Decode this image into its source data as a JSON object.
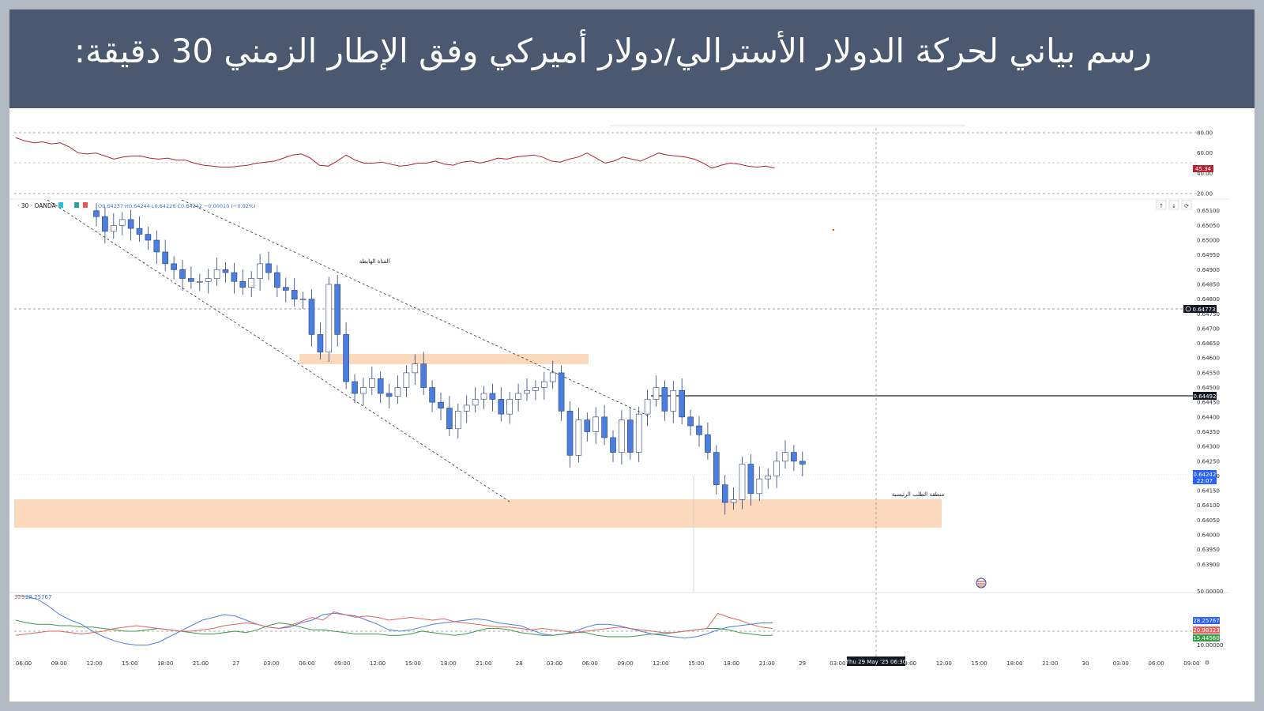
{
  "banner": {
    "title": "رسم بياني لحركة الدولار الأسترالي/دولار أميركي وفق الإطار الزمني 30 دقيقة:"
  },
  "legend": {
    "symbol": "· 30 · OANDA",
    "ohlc": "O0.64237 H0.64244 L0.64226 C0.64242 −0.00010 (−0.02%)"
  },
  "annotations": {
    "channel_label": "القناة الهابطة",
    "demand_label": "منطقة الطلب الرئيسية"
  },
  "badges": {
    "rsi_value": "45.34",
    "line_price": "0.64773",
    "resistance_price": "0.64492",
    "last_price": "0.64242",
    "countdown": "22:07",
    "adx_1": "28.25767",
    "adx_2": "20.98323",
    "adx_3": "15.44560",
    "crosshair_date": "Thu 29 May '25   06:30"
  },
  "indicator_labels": {
    "adx_legend_prefix": "323",
    "adx_legend_value": "28.25767"
  },
  "colors": {
    "banner_bg": "#4a5870",
    "candle_fill": "#4a7fe0",
    "zone_fill": "#fad9bd",
    "rsi_line": "#b22234",
    "adx_line": "#4a7fe0",
    "di_plus": "#3a9a4a",
    "di_minus": "#e0635f"
  },
  "icons": [
    "up-arrow-icon",
    "down-arrow-icon",
    "refresh-icon",
    "target-icon",
    "us-flag-icon",
    "settings-icon"
  ],
  "chart_data": [
    {
      "type": "line",
      "name": "RSI",
      "ylim": [
        20,
        80
      ],
      "y_ticks": [
        "80.00",
        "60.00",
        "40.00",
        "20.00"
      ],
      "values": [
        75,
        72,
        70,
        71,
        69,
        70,
        66,
        60,
        59,
        60,
        57,
        54,
        56,
        57,
        57,
        55,
        54,
        55,
        53,
        53,
        50,
        48,
        47,
        46,
        46,
        47,
        48,
        50,
        51,
        52,
        55,
        58,
        59,
        55,
        48,
        47,
        52,
        58,
        53,
        50,
        50,
        51,
        49,
        47,
        48,
        50,
        50,
        52,
        49,
        48,
        51,
        52,
        50,
        52,
        55,
        54,
        56,
        57,
        58,
        56,
        52,
        51,
        54,
        56,
        60,
        55,
        50,
        52,
        56,
        54,
        52,
        56,
        60,
        58,
        57,
        56,
        54,
        50,
        45,
        48,
        50,
        49,
        47,
        46,
        47,
        45
      ]
    },
    {
      "type": "candlestick",
      "name": "AUDUSD 30m",
      "ylim": [
        0.6385,
        0.6511
      ],
      "y_ticks": [
        "0.65100",
        "0.65050",
        "0.65000",
        "0.64950",
        "0.64900",
        "0.64850",
        "0.64800",
        "0.64750",
        "0.64700",
        "0.64650",
        "0.64600",
        "0.64550",
        "0.64500",
        "0.64450",
        "0.64400",
        "0.64350",
        "0.64300",
        "0.64250",
        "0.64200",
        "0.64150",
        "0.64100",
        "0.64050",
        "0.64000",
        "0.63950",
        "0.63900"
      ],
      "x_ticks": [
        "06:00",
        "09:00",
        "12:00",
        "15:00",
        "18:00",
        "21:00",
        "27",
        "03:00",
        "06:00",
        "09:00",
        "12:00",
        "15:00",
        "18:00",
        "21:00",
        "28",
        "03:00",
        "06:00",
        "09:00",
        "12:00",
        "15:00",
        "18:00",
        "21:00",
        "29",
        "03:00",
        "06:00",
        "09:00",
        "12:00",
        "15:00",
        "18:00",
        "21:00",
        "30",
        "03:00",
        "06:00",
        "09:00"
      ],
      "close": [
        0.6508,
        0.6503,
        0.6505,
        0.6507,
        0.6504,
        0.6502,
        0.65,
        0.6496,
        0.6492,
        0.649,
        0.6487,
        0.6486,
        0.6486,
        0.6487,
        0.649,
        0.6489,
        0.6486,
        0.6484,
        0.6487,
        0.6492,
        0.6489,
        0.6484,
        0.6483,
        0.648,
        0.648,
        0.6468,
        0.6462,
        0.6485,
        0.6468,
        0.6452,
        0.6448,
        0.645,
        0.6453,
        0.6448,
        0.6447,
        0.645,
        0.6455,
        0.6458,
        0.645,
        0.6445,
        0.6443,
        0.6436,
        0.6442,
        0.6444,
        0.6446,
        0.6448,
        0.6446,
        0.6441,
        0.6446,
        0.6448,
        0.6449,
        0.645,
        0.6452,
        0.6455,
        0.6442,
        0.6427,
        0.6439,
        0.6435,
        0.644,
        0.6433,
        0.6428,
        0.6439,
        0.6428,
        0.6441,
        0.6446,
        0.645,
        0.6442,
        0.6449,
        0.644,
        0.6437,
        0.6434,
        0.6428,
        0.6417,
        0.6411,
        0.6412,
        0.6424,
        0.6414,
        0.6419,
        0.642,
        0.6425,
        0.6428,
        0.6425,
        0.6424
      ]
    },
    {
      "type": "line",
      "name": "ADX / DMI",
      "ylim": [
        10,
        50
      ],
      "y_ticks": [
        "50.00000",
        "10.00000"
      ],
      "series": [
        {
          "name": "ADX",
          "values": [
            48,
            47,
            45,
            40,
            34,
            30,
            27,
            22,
            18,
            15,
            13,
            12,
            12,
            14,
            18,
            22,
            26,
            30,
            32,
            34,
            33,
            30,
            27,
            25,
            24,
            25,
            28,
            30,
            34,
            35,
            34,
            33,
            30,
            27,
            23,
            22,
            23,
            25,
            27,
            28,
            29,
            30,
            31,
            30,
            28,
            27,
            26,
            23,
            20,
            19,
            20,
            22,
            25,
            27,
            27,
            26,
            24,
            22,
            20,
            19,
            18,
            17,
            18,
            20,
            23,
            25,
            26,
            27,
            28,
            28
          ]
        },
        {
          "name": "DI+",
          "values": [
            30,
            28,
            27,
            27,
            26,
            26,
            25,
            25,
            24,
            23,
            22,
            22,
            23,
            24,
            23,
            22,
            21,
            20,
            20,
            21,
            22,
            21,
            23,
            26,
            28,
            27,
            25,
            23,
            23,
            22,
            21,
            20,
            20,
            20,
            19,
            19,
            20,
            22,
            21,
            20,
            19,
            20,
            22,
            24,
            24,
            23,
            21,
            20,
            19,
            19,
            20,
            21,
            21,
            19,
            18,
            18,
            18,
            19,
            20,
            20,
            21,
            22,
            23,
            24,
            24,
            23,
            21,
            20,
            19,
            19
          ]
        },
        {
          "name": "DI-",
          "values": [
            19,
            20,
            21,
            22,
            22,
            21,
            20,
            21,
            22,
            24,
            25,
            26,
            25,
            24,
            23,
            22,
            22,
            23,
            24,
            26,
            27,
            28,
            27,
            25,
            24,
            26,
            29,
            32,
            30,
            36,
            34,
            32,
            33,
            32,
            30,
            31,
            32,
            31,
            30,
            31,
            29,
            28,
            27,
            26,
            25,
            25,
            24,
            23,
            24,
            23,
            22,
            21,
            22,
            23,
            24,
            25,
            24,
            23,
            22,
            21,
            21,
            22,
            23,
            24,
            35,
            32,
            30,
            27,
            25,
            24
          ]
        }
      ]
    }
  ]
}
